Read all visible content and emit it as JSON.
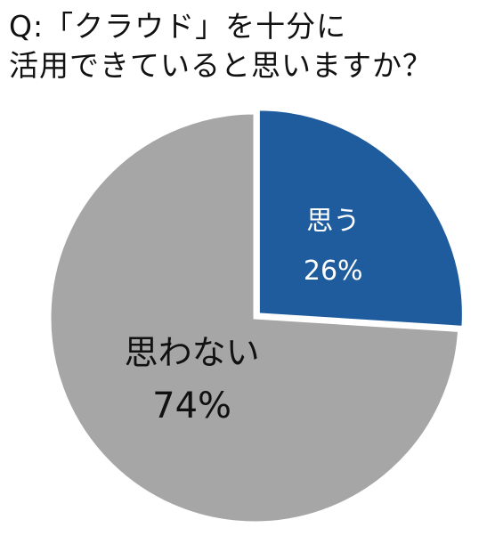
{
  "title": {
    "line1": "Q:「クラウド」を十分に",
    "line2": "活用できていると思いますか？"
  },
  "chart_data": {
    "type": "pie",
    "title": "Q:「クラウド」を十分に活用できていると思いますか？",
    "start_angle": "12 o'clock, clockwise",
    "slices": [
      {
        "label": "思う",
        "value": 26,
        "value_label": "26%",
        "color": "#1f5c9e",
        "exploded": true
      },
      {
        "label": "思わない",
        "value": 74,
        "value_label": "74%",
        "color": "#a6a6a6",
        "exploded": false
      }
    ]
  }
}
